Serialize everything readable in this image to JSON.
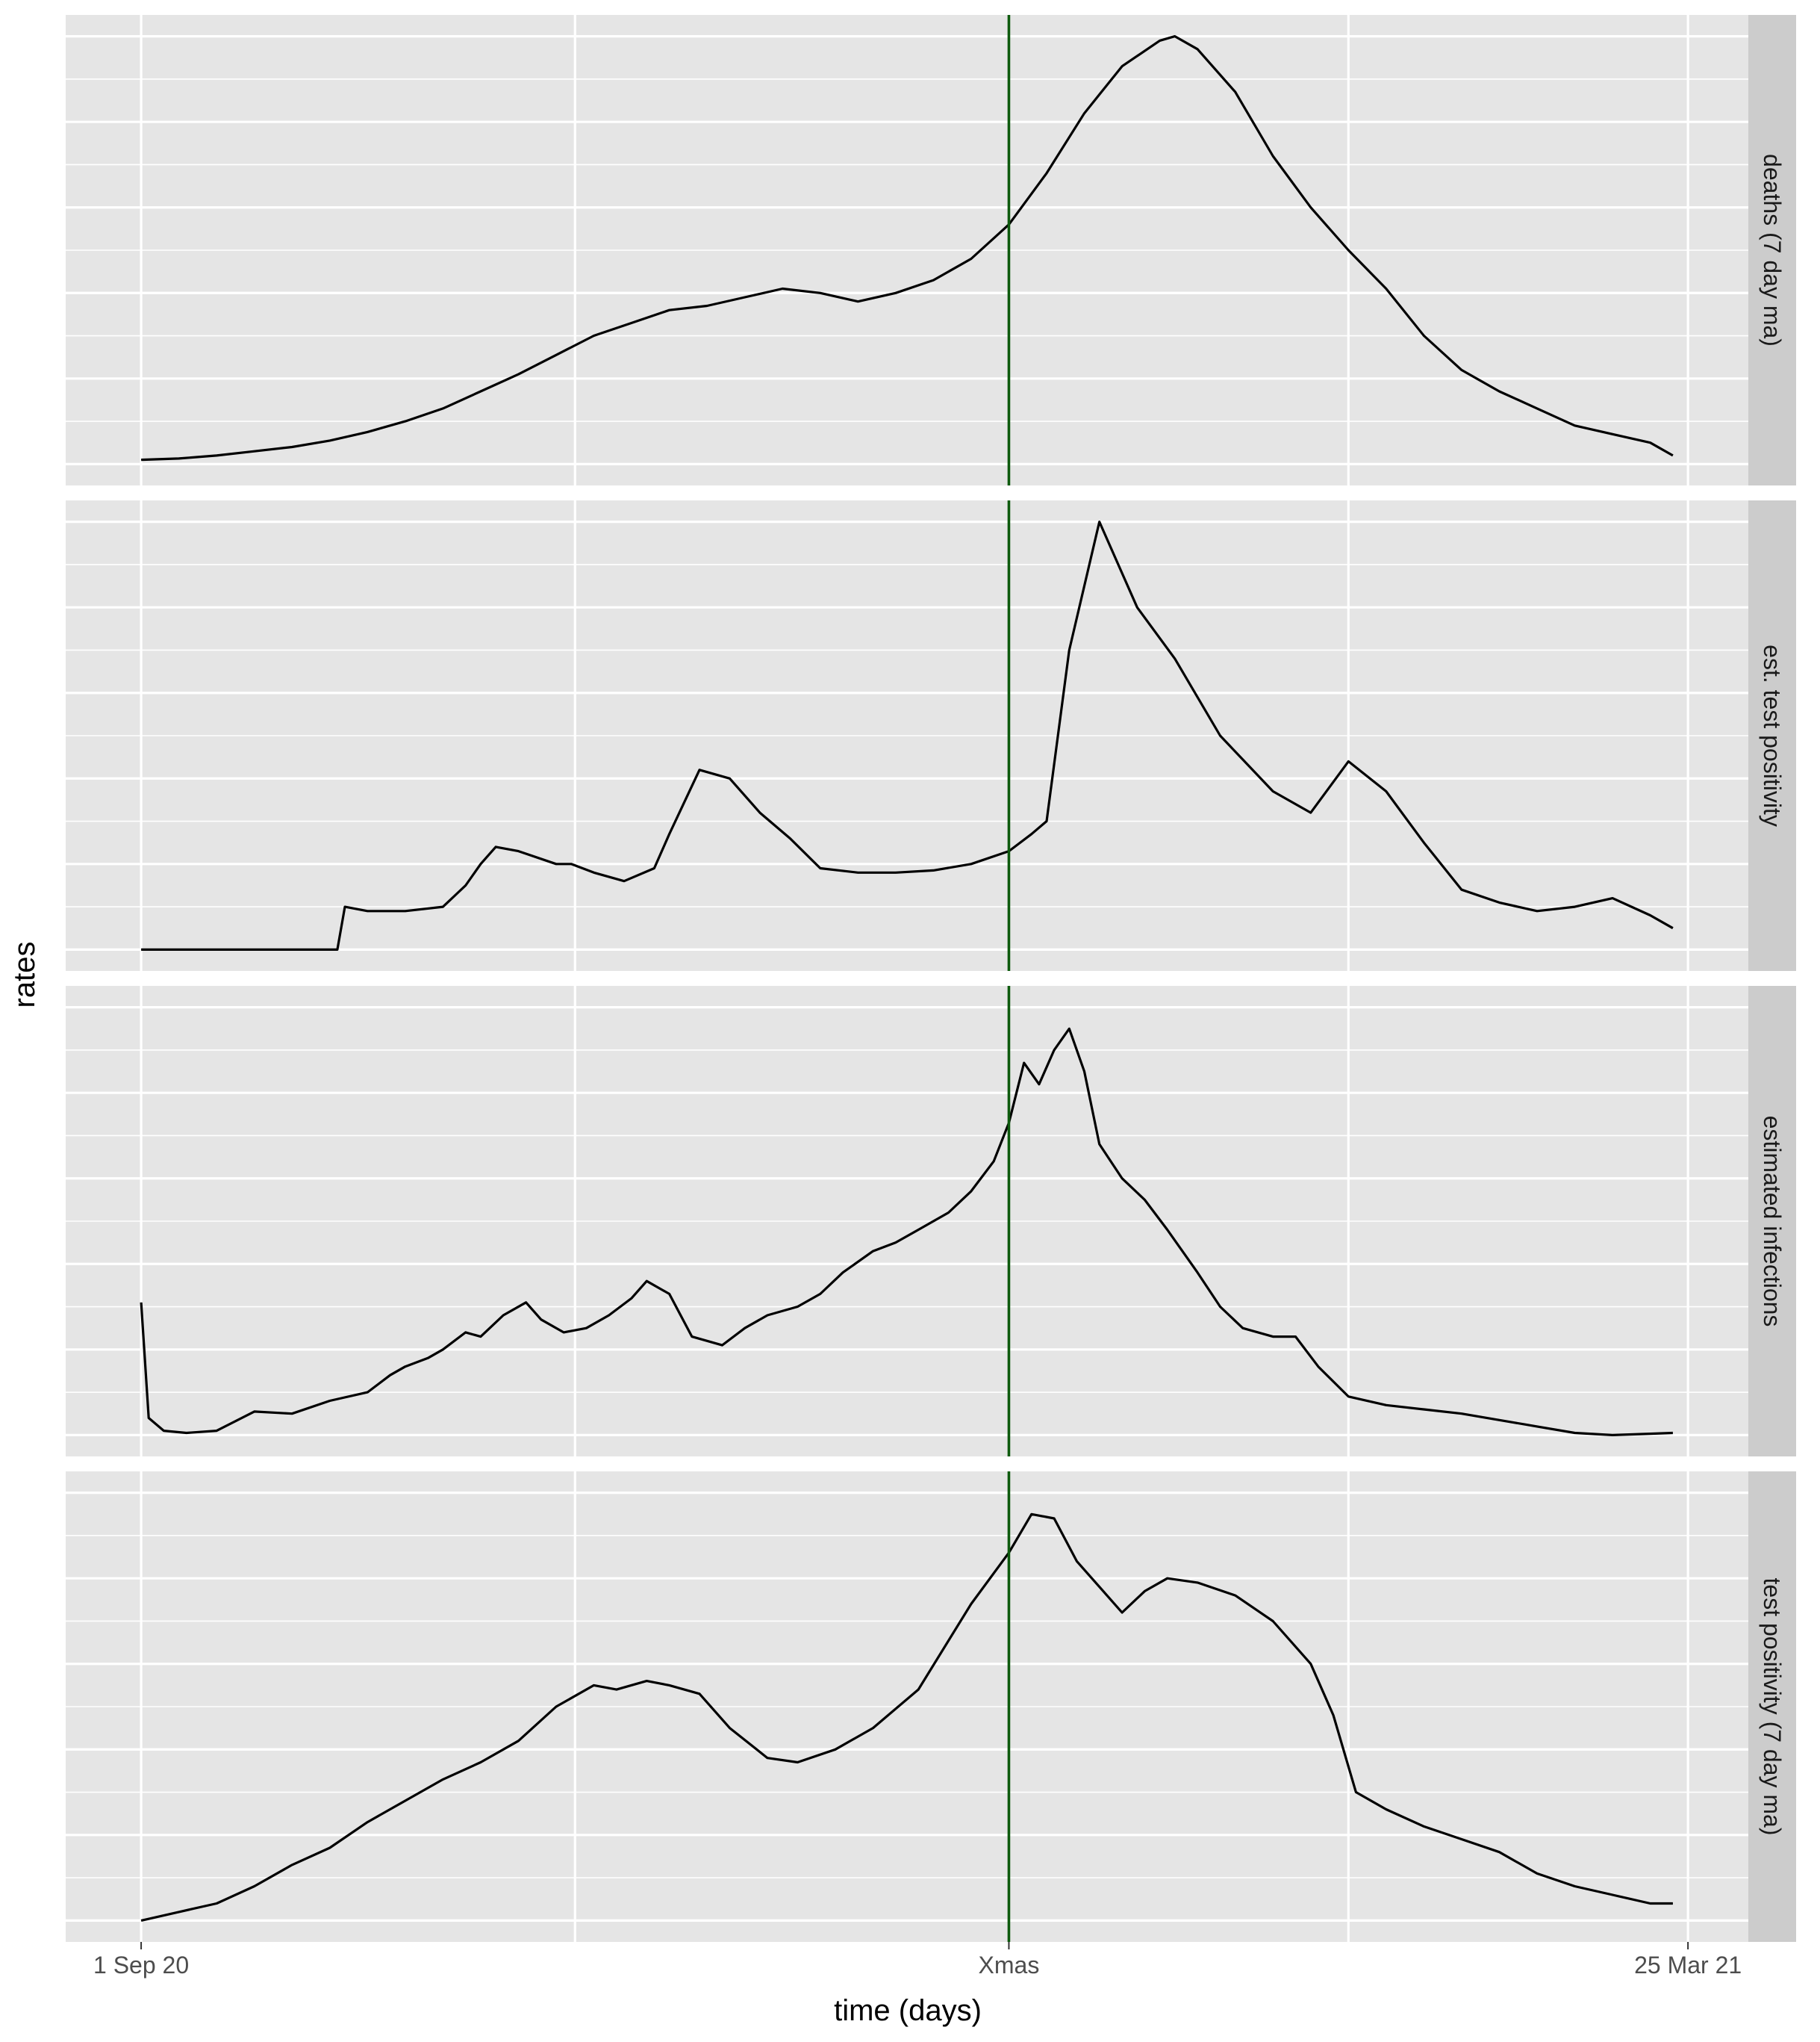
{
  "chart_data": {
    "type": "line",
    "layout": "faceted",
    "xlabel": "time (days)",
    "ylabel": "rates",
    "x_ticks": [
      {
        "day": 0,
        "label": "1 Sep 20"
      },
      {
        "day": 115,
        "label": "Xmas"
      },
      {
        "day": 205,
        "label": "25 Mar 21"
      }
    ],
    "xlim": [
      -10,
      213
    ],
    "vline": {
      "day": 115,
      "color": "#0d5a0d"
    },
    "x_gridlines": [
      0,
      57.5,
      115,
      160,
      205
    ],
    "y_scale": "free, tick labels not shown",
    "line_color": "#000000",
    "grid": true,
    "facets": [
      {
        "label": "deaths (7 day ma)",
        "ylim": [
          -0.05,
          1.05
        ],
        "points": [
          [
            0,
            0.01
          ],
          [
            5,
            0.013
          ],
          [
            10,
            0.02
          ],
          [
            15,
            0.03
          ],
          [
            20,
            0.04
          ],
          [
            25,
            0.055
          ],
          [
            30,
            0.075
          ],
          [
            35,
            0.1
          ],
          [
            40,
            0.13
          ],
          [
            45,
            0.17
          ],
          [
            50,
            0.21
          ],
          [
            55,
            0.255
          ],
          [
            60,
            0.3
          ],
          [
            65,
            0.33
          ],
          [
            70,
            0.36
          ],
          [
            75,
            0.37
          ],
          [
            80,
            0.39
          ],
          [
            85,
            0.41
          ],
          [
            90,
            0.4
          ],
          [
            95,
            0.38
          ],
          [
            100,
            0.4
          ],
          [
            105,
            0.43
          ],
          [
            110,
            0.48
          ],
          [
            115,
            0.56
          ],
          [
            120,
            0.68
          ],
          [
            125,
            0.82
          ],
          [
            130,
            0.93
          ],
          [
            135,
            0.99
          ],
          [
            137,
            1.0
          ],
          [
            140,
            0.97
          ],
          [
            145,
            0.87
          ],
          [
            150,
            0.72
          ],
          [
            155,
            0.6
          ],
          [
            160,
            0.5
          ],
          [
            165,
            0.41
          ],
          [
            170,
            0.3
          ],
          [
            175,
            0.22
          ],
          [
            180,
            0.17
          ],
          [
            185,
            0.13
          ],
          [
            190,
            0.09
          ],
          [
            195,
            0.07
          ],
          [
            200,
            0.05
          ],
          [
            203,
            0.02
          ]
        ]
      },
      {
        "label": "est. test positivity",
        "ylim": [
          -0.05,
          1.05
        ],
        "points": [
          [
            0,
            0
          ],
          [
            10,
            0
          ],
          [
            20,
            0
          ],
          [
            26,
            0
          ],
          [
            27,
            0.1
          ],
          [
            30,
            0.09
          ],
          [
            35,
            0.09
          ],
          [
            40,
            0.1
          ],
          [
            43,
            0.15
          ],
          [
            45,
            0.2
          ],
          [
            47,
            0.24
          ],
          [
            50,
            0.23
          ],
          [
            55,
            0.2
          ],
          [
            57,
            0.2
          ],
          [
            60,
            0.18
          ],
          [
            64,
            0.16
          ],
          [
            68,
            0.19
          ],
          [
            70,
            0.27
          ],
          [
            74,
            0.42
          ],
          [
            78,
            0.4
          ],
          [
            82,
            0.32
          ],
          [
            86,
            0.26
          ],
          [
            90,
            0.19
          ],
          [
            95,
            0.18
          ],
          [
            100,
            0.18
          ],
          [
            105,
            0.185
          ],
          [
            110,
            0.2
          ],
          [
            115,
            0.23
          ],
          [
            118,
            0.27
          ],
          [
            120,
            0.3
          ],
          [
            123,
            0.7
          ],
          [
            127,
            1.0
          ],
          [
            132,
            0.8
          ],
          [
            137,
            0.68
          ],
          [
            143,
            0.5
          ],
          [
            150,
            0.37
          ],
          [
            155,
            0.32
          ],
          [
            160,
            0.44
          ],
          [
            165,
            0.37
          ],
          [
            170,
            0.25
          ],
          [
            175,
            0.14
          ],
          [
            180,
            0.11
          ],
          [
            185,
            0.09
          ],
          [
            190,
            0.1
          ],
          [
            195,
            0.12
          ],
          [
            200,
            0.08
          ],
          [
            203,
            0.05
          ]
        ]
      },
      {
        "label": "estimated infections",
        "ylim": [
          -0.05,
          1.05
        ],
        "points": [
          [
            0,
            0.31
          ],
          [
            1,
            0.04
          ],
          [
            3,
            0.01
          ],
          [
            6,
            0.005
          ],
          [
            10,
            0.01
          ],
          [
            15,
            0.055
          ],
          [
            20,
            0.05
          ],
          [
            25,
            0.08
          ],
          [
            30,
            0.1
          ],
          [
            33,
            0.14
          ],
          [
            35,
            0.16
          ],
          [
            38,
            0.18
          ],
          [
            40,
            0.2
          ],
          [
            43,
            0.24
          ],
          [
            45,
            0.23
          ],
          [
            48,
            0.28
          ],
          [
            51,
            0.31
          ],
          [
            53,
            0.27
          ],
          [
            56,
            0.24
          ],
          [
            59,
            0.25
          ],
          [
            62,
            0.28
          ],
          [
            65,
            0.32
          ],
          [
            67,
            0.36
          ],
          [
            70,
            0.33
          ],
          [
            73,
            0.23
          ],
          [
            77,
            0.21
          ],
          [
            80,
            0.25
          ],
          [
            83,
            0.28
          ],
          [
            87,
            0.3
          ],
          [
            90,
            0.33
          ],
          [
            93,
            0.38
          ],
          [
            97,
            0.43
          ],
          [
            100,
            0.45
          ],
          [
            103,
            0.48
          ],
          [
            107,
            0.52
          ],
          [
            110,
            0.57
          ],
          [
            113,
            0.64
          ],
          [
            115,
            0.73
          ],
          [
            117,
            0.87
          ],
          [
            119,
            0.82
          ],
          [
            121,
            0.9
          ],
          [
            123,
            0.95
          ],
          [
            125,
            0.85
          ],
          [
            127,
            0.68
          ],
          [
            130,
            0.6
          ],
          [
            133,
            0.55
          ],
          [
            136,
            0.48
          ],
          [
            140,
            0.38
          ],
          [
            143,
            0.3
          ],
          [
            146,
            0.25
          ],
          [
            150,
            0.23
          ],
          [
            153,
            0.23
          ],
          [
            156,
            0.16
          ],
          [
            160,
            0.09
          ],
          [
            165,
            0.07
          ],
          [
            170,
            0.06
          ],
          [
            175,
            0.05
          ],
          [
            180,
            0.035
          ],
          [
            185,
            0.02
          ],
          [
            190,
            0.005
          ],
          [
            195,
            0.0
          ],
          [
            200,
            0.003
          ],
          [
            203,
            0.005
          ]
        ]
      },
      {
        "label": "test positivity (7 day ma)",
        "ylim": [
          -0.05,
          1.05
        ],
        "points": [
          [
            0,
            0.0
          ],
          [
            5,
            0.02
          ],
          [
            10,
            0.04
          ],
          [
            15,
            0.08
          ],
          [
            20,
            0.13
          ],
          [
            25,
            0.17
          ],
          [
            30,
            0.23
          ],
          [
            35,
            0.28
          ],
          [
            40,
            0.33
          ],
          [
            45,
            0.37
          ],
          [
            50,
            0.42
          ],
          [
            55,
            0.5
          ],
          [
            60,
            0.55
          ],
          [
            63,
            0.54
          ],
          [
            67,
            0.56
          ],
          [
            70,
            0.55
          ],
          [
            74,
            0.53
          ],
          [
            78,
            0.45
          ],
          [
            83,
            0.38
          ],
          [
            87,
            0.37
          ],
          [
            92,
            0.4
          ],
          [
            97,
            0.45
          ],
          [
            103,
            0.54
          ],
          [
            110,
            0.74
          ],
          [
            115,
            0.86
          ],
          [
            118,
            0.95
          ],
          [
            121,
            0.94
          ],
          [
            124,
            0.84
          ],
          [
            127,
            0.78
          ],
          [
            130,
            0.72
          ],
          [
            133,
            0.77
          ],
          [
            136,
            0.8
          ],
          [
            140,
            0.79
          ],
          [
            145,
            0.76
          ],
          [
            150,
            0.7
          ],
          [
            155,
            0.6
          ],
          [
            158,
            0.48
          ],
          [
            161,
            0.3
          ],
          [
            165,
            0.26
          ],
          [
            170,
            0.22
          ],
          [
            175,
            0.19
          ],
          [
            180,
            0.16
          ],
          [
            185,
            0.11
          ],
          [
            190,
            0.08
          ],
          [
            195,
            0.06
          ],
          [
            200,
            0.04
          ],
          [
            203,
            0.04
          ]
        ]
      }
    ]
  }
}
